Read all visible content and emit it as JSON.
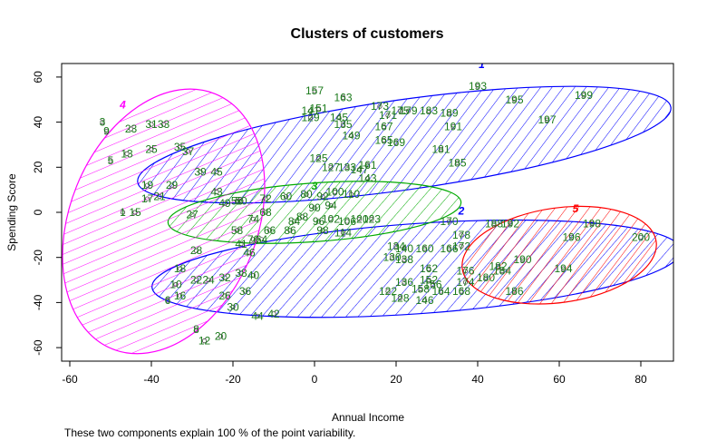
{
  "chart_data": {
    "type": "scatter",
    "title": "Clusters of customers",
    "xlabel": "Annual Income",
    "ylabel": "Spending Score",
    "footnote": "These two components explain 100 % of the point variability.",
    "xlim": [
      -62,
      88
    ],
    "ylim": [
      -66,
      66
    ],
    "xticks": [
      -60,
      -40,
      -20,
      0,
      20,
      40,
      60,
      80
    ],
    "yticks": [
      -60,
      -40,
      -20,
      0,
      20,
      40,
      60
    ],
    "point_color": "#1a7a1a",
    "clusters": [
      {
        "name": "1",
        "color": "#0000ff",
        "label_pos": [
          41,
          64
        ],
        "ellipse": {
          "cx": 22,
          "cy": 30,
          "rx": 66,
          "ry": 20,
          "angle": 8
        }
      },
      {
        "name": "2",
        "color": "#0000ff",
        "label_pos": [
          36,
          -1
        ],
        "ellipse": {
          "cx": 25,
          "cy": -25,
          "rx": 65,
          "ry": 20,
          "angle": 4
        }
      },
      {
        "name": "3",
        "color": "#00aa00",
        "label_pos": [
          0,
          10
        ],
        "ellipse": {
          "cx": 0,
          "cy": 0,
          "rx": 36,
          "ry": 13,
          "angle": 4
        }
      },
      {
        "name": "4",
        "color": "#ff00ff",
        "label_pos": [
          -47,
          46
        ],
        "ellipse": {
          "cx": -37,
          "cy": -4,
          "rx": 23,
          "ry": 61,
          "angle": -22
        }
      },
      {
        "name": "5",
        "color": "#ff0000",
        "label_pos": [
          64,
          0
        ],
        "ellipse": {
          "cx": 60,
          "cy": -19,
          "rx": 24,
          "ry": 21,
          "angle": 8
        }
      }
    ],
    "points": [
      {
        "label": "199",
        "x": 66,
        "y": 52
      },
      {
        "label": "193",
        "x": 40,
        "y": 56
      },
      {
        "label": "195",
        "x": 49,
        "y": 50
      },
      {
        "label": "197",
        "x": 57,
        "y": 41
      },
      {
        "label": "157",
        "x": 0,
        "y": 54
      },
      {
        "label": "163",
        "x": 7,
        "y": 51
      },
      {
        "label": "173",
        "x": 16,
        "y": 47
      },
      {
        "label": "179",
        "x": 23,
        "y": 45
      },
      {
        "label": "183",
        "x": 28,
        "y": 45
      },
      {
        "label": "189",
        "x": 33,
        "y": 44
      },
      {
        "label": "191",
        "x": 34,
        "y": 38
      },
      {
        "label": "181",
        "x": 31,
        "y": 28
      },
      {
        "label": "185",
        "x": 35,
        "y": 22
      },
      {
        "label": "169",
        "x": 20,
        "y": 31
      },
      {
        "label": "165",
        "x": 17,
        "y": 32
      },
      {
        "label": "167",
        "x": 17,
        "y": 38
      },
      {
        "label": "171",
        "x": 18,
        "y": 43
      },
      {
        "label": "175",
        "x": 21,
        "y": 45
      },
      {
        "label": "145",
        "x": 6,
        "y": 42
      },
      {
        "label": "141",
        "x": -1,
        "y": 45
      },
      {
        "label": "151",
        "x": 1,
        "y": 46
      },
      {
        "label": "129",
        "x": -1,
        "y": 42
      },
      {
        "label": "135",
        "x": 7,
        "y": 39
      },
      {
        "label": "149",
        "x": 9,
        "y": 34
      },
      {
        "label": "125",
        "x": 1,
        "y": 24
      },
      {
        "label": "161",
        "x": 13,
        "y": 21
      },
      {
        "label": "143",
        "x": 13,
        "y": 15
      },
      {
        "label": "147",
        "x": 11,
        "y": 19
      },
      {
        "label": "127",
        "x": 4,
        "y": 20
      },
      {
        "label": "133",
        "x": 8,
        "y": 20
      },
      {
        "label": "1",
        "x": -47,
        "y": 0
      },
      {
        "label": "15",
        "x": -44,
        "y": 0
      },
      {
        "label": "3",
        "x": -52,
        "y": 40
      },
      {
        "label": "9",
        "x": -51,
        "y": 36
      },
      {
        "label": "5",
        "x": -50,
        "y": 23
      },
      {
        "label": "13",
        "x": -46,
        "y": 26
      },
      {
        "label": "23",
        "x": -45,
        "y": 37
      },
      {
        "label": "31",
        "x": -40,
        "y": 39
      },
      {
        "label": "33",
        "x": -37,
        "y": 39
      },
      {
        "label": "25",
        "x": -40,
        "y": 28
      },
      {
        "label": "35",
        "x": -33,
        "y": 29
      },
      {
        "label": "37",
        "x": -31,
        "y": 27
      },
      {
        "label": "19",
        "x": -41,
        "y": 12
      },
      {
        "label": "29",
        "x": -35,
        "y": 12
      },
      {
        "label": "17",
        "x": -41,
        "y": 6
      },
      {
        "label": "21",
        "x": -38,
        "y": 7
      },
      {
        "label": "27",
        "x": -30,
        "y": -1
      },
      {
        "label": "39",
        "x": -28,
        "y": 18
      },
      {
        "label": "45",
        "x": -24,
        "y": 18
      },
      {
        "label": "43",
        "x": -24,
        "y": 9
      },
      {
        "label": "49",
        "x": -22,
        "y": 4
      },
      {
        "label": "28",
        "x": -29,
        "y": -17
      },
      {
        "label": "18",
        "x": -33,
        "y": -25
      },
      {
        "label": "10",
        "x": -34,
        "y": -32
      },
      {
        "label": "22",
        "x": -29,
        "y": -30
      },
      {
        "label": "24",
        "x": -26,
        "y": -30
      },
      {
        "label": "32",
        "x": -22,
        "y": -29
      },
      {
        "label": "38",
        "x": -18,
        "y": -27
      },
      {
        "label": "40",
        "x": -15,
        "y": -28
      },
      {
        "label": "6",
        "x": -36,
        "y": -39
      },
      {
        "label": "16",
        "x": -33,
        "y": -37
      },
      {
        "label": "26",
        "x": -22,
        "y": -37
      },
      {
        "label": "36",
        "x": -17,
        "y": -35
      },
      {
        "label": "30",
        "x": -20,
        "y": -42
      },
      {
        "label": "8",
        "x": -29,
        "y": -52
      },
      {
        "label": "12",
        "x": -27,
        "y": -57
      },
      {
        "label": "20",
        "x": -23,
        "y": -55
      },
      {
        "label": "44",
        "x": -14,
        "y": -46
      },
      {
        "label": "42",
        "x": -10,
        "y": -45
      },
      {
        "label": "46",
        "x": -16,
        "y": -18
      },
      {
        "label": "41",
        "x": -18,
        "y": -14
      },
      {
        "label": "50",
        "x": -18,
        "y": 5
      },
      {
        "label": "56",
        "x": -19,
        "y": 5
      },
      {
        "label": "72",
        "x": -12,
        "y": 6
      },
      {
        "label": "60",
        "x": -7,
        "y": 7
      },
      {
        "label": "80",
        "x": -2,
        "y": 8
      },
      {
        "label": "92",
        "x": 2,
        "y": 7
      },
      {
        "label": "100",
        "x": 5,
        "y": 9
      },
      {
        "label": "110",
        "x": 9,
        "y": 8
      },
      {
        "label": "90",
        "x": 0,
        "y": 2
      },
      {
        "label": "94",
        "x": 4,
        "y": 3
      },
      {
        "label": "68",
        "x": -12,
        "y": 0
      },
      {
        "label": "74",
        "x": -15,
        "y": -3
      },
      {
        "label": "58",
        "x": -19,
        "y": -8
      },
      {
        "label": "66",
        "x": -11,
        "y": -8
      },
      {
        "label": "84",
        "x": -5,
        "y": -4
      },
      {
        "label": "88",
        "x": -3,
        "y": -2
      },
      {
        "label": "96",
        "x": 1,
        "y": -4
      },
      {
        "label": "102",
        "x": 4,
        "y": -3
      },
      {
        "label": "106",
        "x": 8,
        "y": -4
      },
      {
        "label": "120",
        "x": 11,
        "y": -3
      },
      {
        "label": "123",
        "x": 14,
        "y": -3
      },
      {
        "label": "86",
        "x": -6,
        "y": -8
      },
      {
        "label": "98",
        "x": 2,
        "y": -8
      },
      {
        "label": "114",
        "x": 7,
        "y": -9
      },
      {
        "label": "70",
        "x": -15,
        "y": -12
      },
      {
        "label": "64",
        "x": -13,
        "y": -12
      },
      {
        "label": "134",
        "x": 20,
        "y": -15
      },
      {
        "label": "140",
        "x": 22,
        "y": -16
      },
      {
        "label": "160",
        "x": 27,
        "y": -16
      },
      {
        "label": "166",
        "x": 33,
        "y": -16
      },
      {
        "label": "172",
        "x": 36,
        "y": -15
      },
      {
        "label": "170",
        "x": 33,
        "y": -4
      },
      {
        "label": "178",
        "x": 36,
        "y": -10
      },
      {
        "label": "188",
        "x": 44,
        "y": -5
      },
      {
        "label": "192",
        "x": 48,
        "y": -5
      },
      {
        "label": "130",
        "x": 19,
        "y": -20
      },
      {
        "label": "138",
        "x": 22,
        "y": -21
      },
      {
        "label": "162",
        "x": 28,
        "y": -25
      },
      {
        "label": "176",
        "x": 37,
        "y": -26
      },
      {
        "label": "182",
        "x": 45,
        "y": -24
      },
      {
        "label": "184",
        "x": 46,
        "y": -26
      },
      {
        "label": "190",
        "x": 51,
        "y": -21
      },
      {
        "label": "180",
        "x": 42,
        "y": -29
      },
      {
        "label": "174",
        "x": 37,
        "y": -31
      },
      {
        "label": "194",
        "x": 61,
        "y": -25
      },
      {
        "label": "186",
        "x": 49,
        "y": -35
      },
      {
        "label": "196",
        "x": 63,
        "y": -11
      },
      {
        "label": "198",
        "x": 68,
        "y": -5
      },
      {
        "label": "200",
        "x": 80,
        "y": -11
      },
      {
        "label": "136",
        "x": 22,
        "y": -31
      },
      {
        "label": "152",
        "x": 28,
        "y": -30
      },
      {
        "label": "156",
        "x": 29,
        "y": -32
      },
      {
        "label": "158",
        "x": 26,
        "y": -34
      },
      {
        "label": "122",
        "x": 18,
        "y": -35
      },
      {
        "label": "128",
        "x": 21,
        "y": -38
      },
      {
        "label": "146",
        "x": 27,
        "y": -39
      },
      {
        "label": "164",
        "x": 31,
        "y": -35
      },
      {
        "label": "168",
        "x": 36,
        "y": -35
      }
    ]
  }
}
